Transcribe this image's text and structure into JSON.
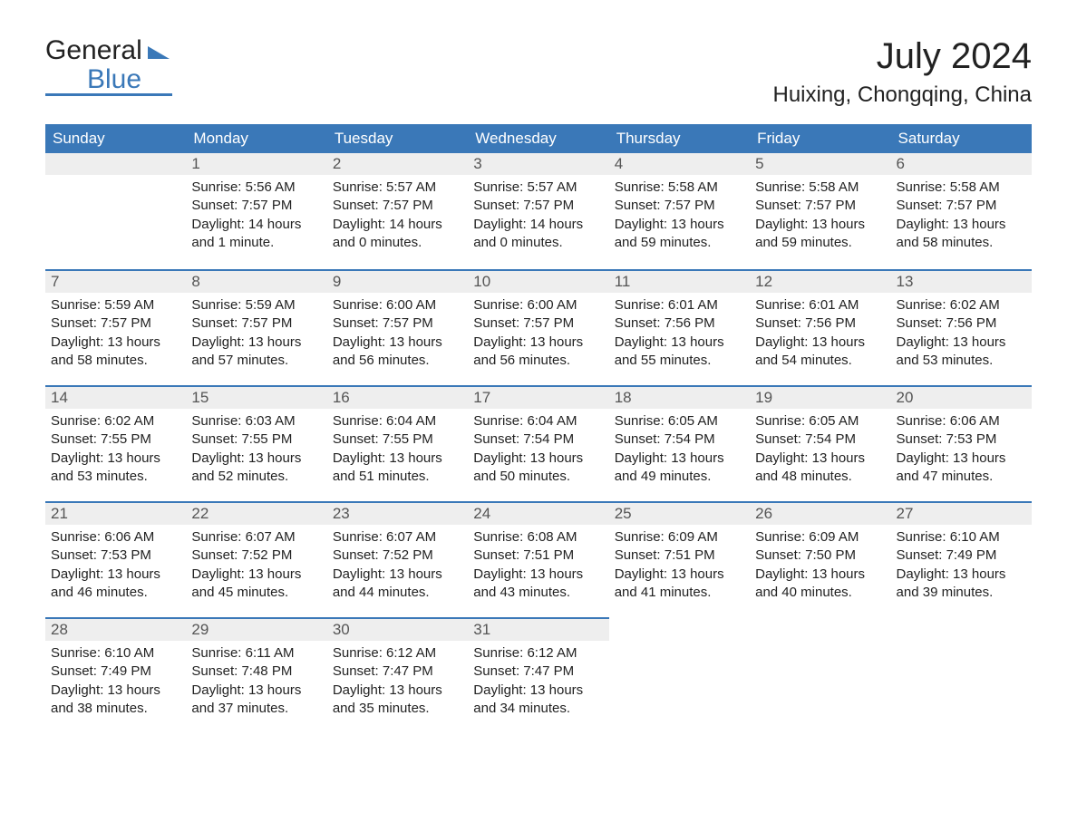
{
  "logo": {
    "line1": "General",
    "line2": "Blue"
  },
  "title": "July 2024",
  "subtitle": "Huixing, Chongqing, China",
  "colors": {
    "header_bg": "#3a78b8",
    "header_text": "#ffffff",
    "daynum_bg": "#eeeeee",
    "cell_border": "#3a78b8",
    "body_text": "#222222",
    "page_bg": "#ffffff"
  },
  "calendar": {
    "weekdays": [
      "Sunday",
      "Monday",
      "Tuesday",
      "Wednesday",
      "Thursday",
      "Friday",
      "Saturday"
    ],
    "weeks": [
      [
        null,
        {
          "d": "1",
          "sr": "5:56 AM",
          "ss": "7:57 PM",
          "dl": "14 hours and 1 minute."
        },
        {
          "d": "2",
          "sr": "5:57 AM",
          "ss": "7:57 PM",
          "dl": "14 hours and 0 minutes."
        },
        {
          "d": "3",
          "sr": "5:57 AM",
          "ss": "7:57 PM",
          "dl": "14 hours and 0 minutes."
        },
        {
          "d": "4",
          "sr": "5:58 AM",
          "ss": "7:57 PM",
          "dl": "13 hours and 59 minutes."
        },
        {
          "d": "5",
          "sr": "5:58 AM",
          "ss": "7:57 PM",
          "dl": "13 hours and 59 minutes."
        },
        {
          "d": "6",
          "sr": "5:58 AM",
          "ss": "7:57 PM",
          "dl": "13 hours and 58 minutes."
        }
      ],
      [
        {
          "d": "7",
          "sr": "5:59 AM",
          "ss": "7:57 PM",
          "dl": "13 hours and 58 minutes."
        },
        {
          "d": "8",
          "sr": "5:59 AM",
          "ss": "7:57 PM",
          "dl": "13 hours and 57 minutes."
        },
        {
          "d": "9",
          "sr": "6:00 AM",
          "ss": "7:57 PM",
          "dl": "13 hours and 56 minutes."
        },
        {
          "d": "10",
          "sr": "6:00 AM",
          "ss": "7:57 PM",
          "dl": "13 hours and 56 minutes."
        },
        {
          "d": "11",
          "sr": "6:01 AM",
          "ss": "7:56 PM",
          "dl": "13 hours and 55 minutes."
        },
        {
          "d": "12",
          "sr": "6:01 AM",
          "ss": "7:56 PM",
          "dl": "13 hours and 54 minutes."
        },
        {
          "d": "13",
          "sr": "6:02 AM",
          "ss": "7:56 PM",
          "dl": "13 hours and 53 minutes."
        }
      ],
      [
        {
          "d": "14",
          "sr": "6:02 AM",
          "ss": "7:55 PM",
          "dl": "13 hours and 53 minutes."
        },
        {
          "d": "15",
          "sr": "6:03 AM",
          "ss": "7:55 PM",
          "dl": "13 hours and 52 minutes."
        },
        {
          "d": "16",
          "sr": "6:04 AM",
          "ss": "7:55 PM",
          "dl": "13 hours and 51 minutes."
        },
        {
          "d": "17",
          "sr": "6:04 AM",
          "ss": "7:54 PM",
          "dl": "13 hours and 50 minutes."
        },
        {
          "d": "18",
          "sr": "6:05 AM",
          "ss": "7:54 PM",
          "dl": "13 hours and 49 minutes."
        },
        {
          "d": "19",
          "sr": "6:05 AM",
          "ss": "7:54 PM",
          "dl": "13 hours and 48 minutes."
        },
        {
          "d": "20",
          "sr": "6:06 AM",
          "ss": "7:53 PM",
          "dl": "13 hours and 47 minutes."
        }
      ],
      [
        {
          "d": "21",
          "sr": "6:06 AM",
          "ss": "7:53 PM",
          "dl": "13 hours and 46 minutes."
        },
        {
          "d": "22",
          "sr": "6:07 AM",
          "ss": "7:52 PM",
          "dl": "13 hours and 45 minutes."
        },
        {
          "d": "23",
          "sr": "6:07 AM",
          "ss": "7:52 PM",
          "dl": "13 hours and 44 minutes."
        },
        {
          "d": "24",
          "sr": "6:08 AM",
          "ss": "7:51 PM",
          "dl": "13 hours and 43 minutes."
        },
        {
          "d": "25",
          "sr": "6:09 AM",
          "ss": "7:51 PM",
          "dl": "13 hours and 41 minutes."
        },
        {
          "d": "26",
          "sr": "6:09 AM",
          "ss": "7:50 PM",
          "dl": "13 hours and 40 minutes."
        },
        {
          "d": "27",
          "sr": "6:10 AM",
          "ss": "7:49 PM",
          "dl": "13 hours and 39 minutes."
        }
      ],
      [
        {
          "d": "28",
          "sr": "6:10 AM",
          "ss": "7:49 PM",
          "dl": "13 hours and 38 minutes."
        },
        {
          "d": "29",
          "sr": "6:11 AM",
          "ss": "7:48 PM",
          "dl": "13 hours and 37 minutes."
        },
        {
          "d": "30",
          "sr": "6:12 AM",
          "ss": "7:47 PM",
          "dl": "13 hours and 35 minutes."
        },
        {
          "d": "31",
          "sr": "6:12 AM",
          "ss": "7:47 PM",
          "dl": "13 hours and 34 minutes."
        },
        null,
        null,
        null
      ]
    ],
    "labels": {
      "sunrise": "Sunrise:",
      "sunset": "Sunset:",
      "daylight": "Daylight:"
    }
  }
}
